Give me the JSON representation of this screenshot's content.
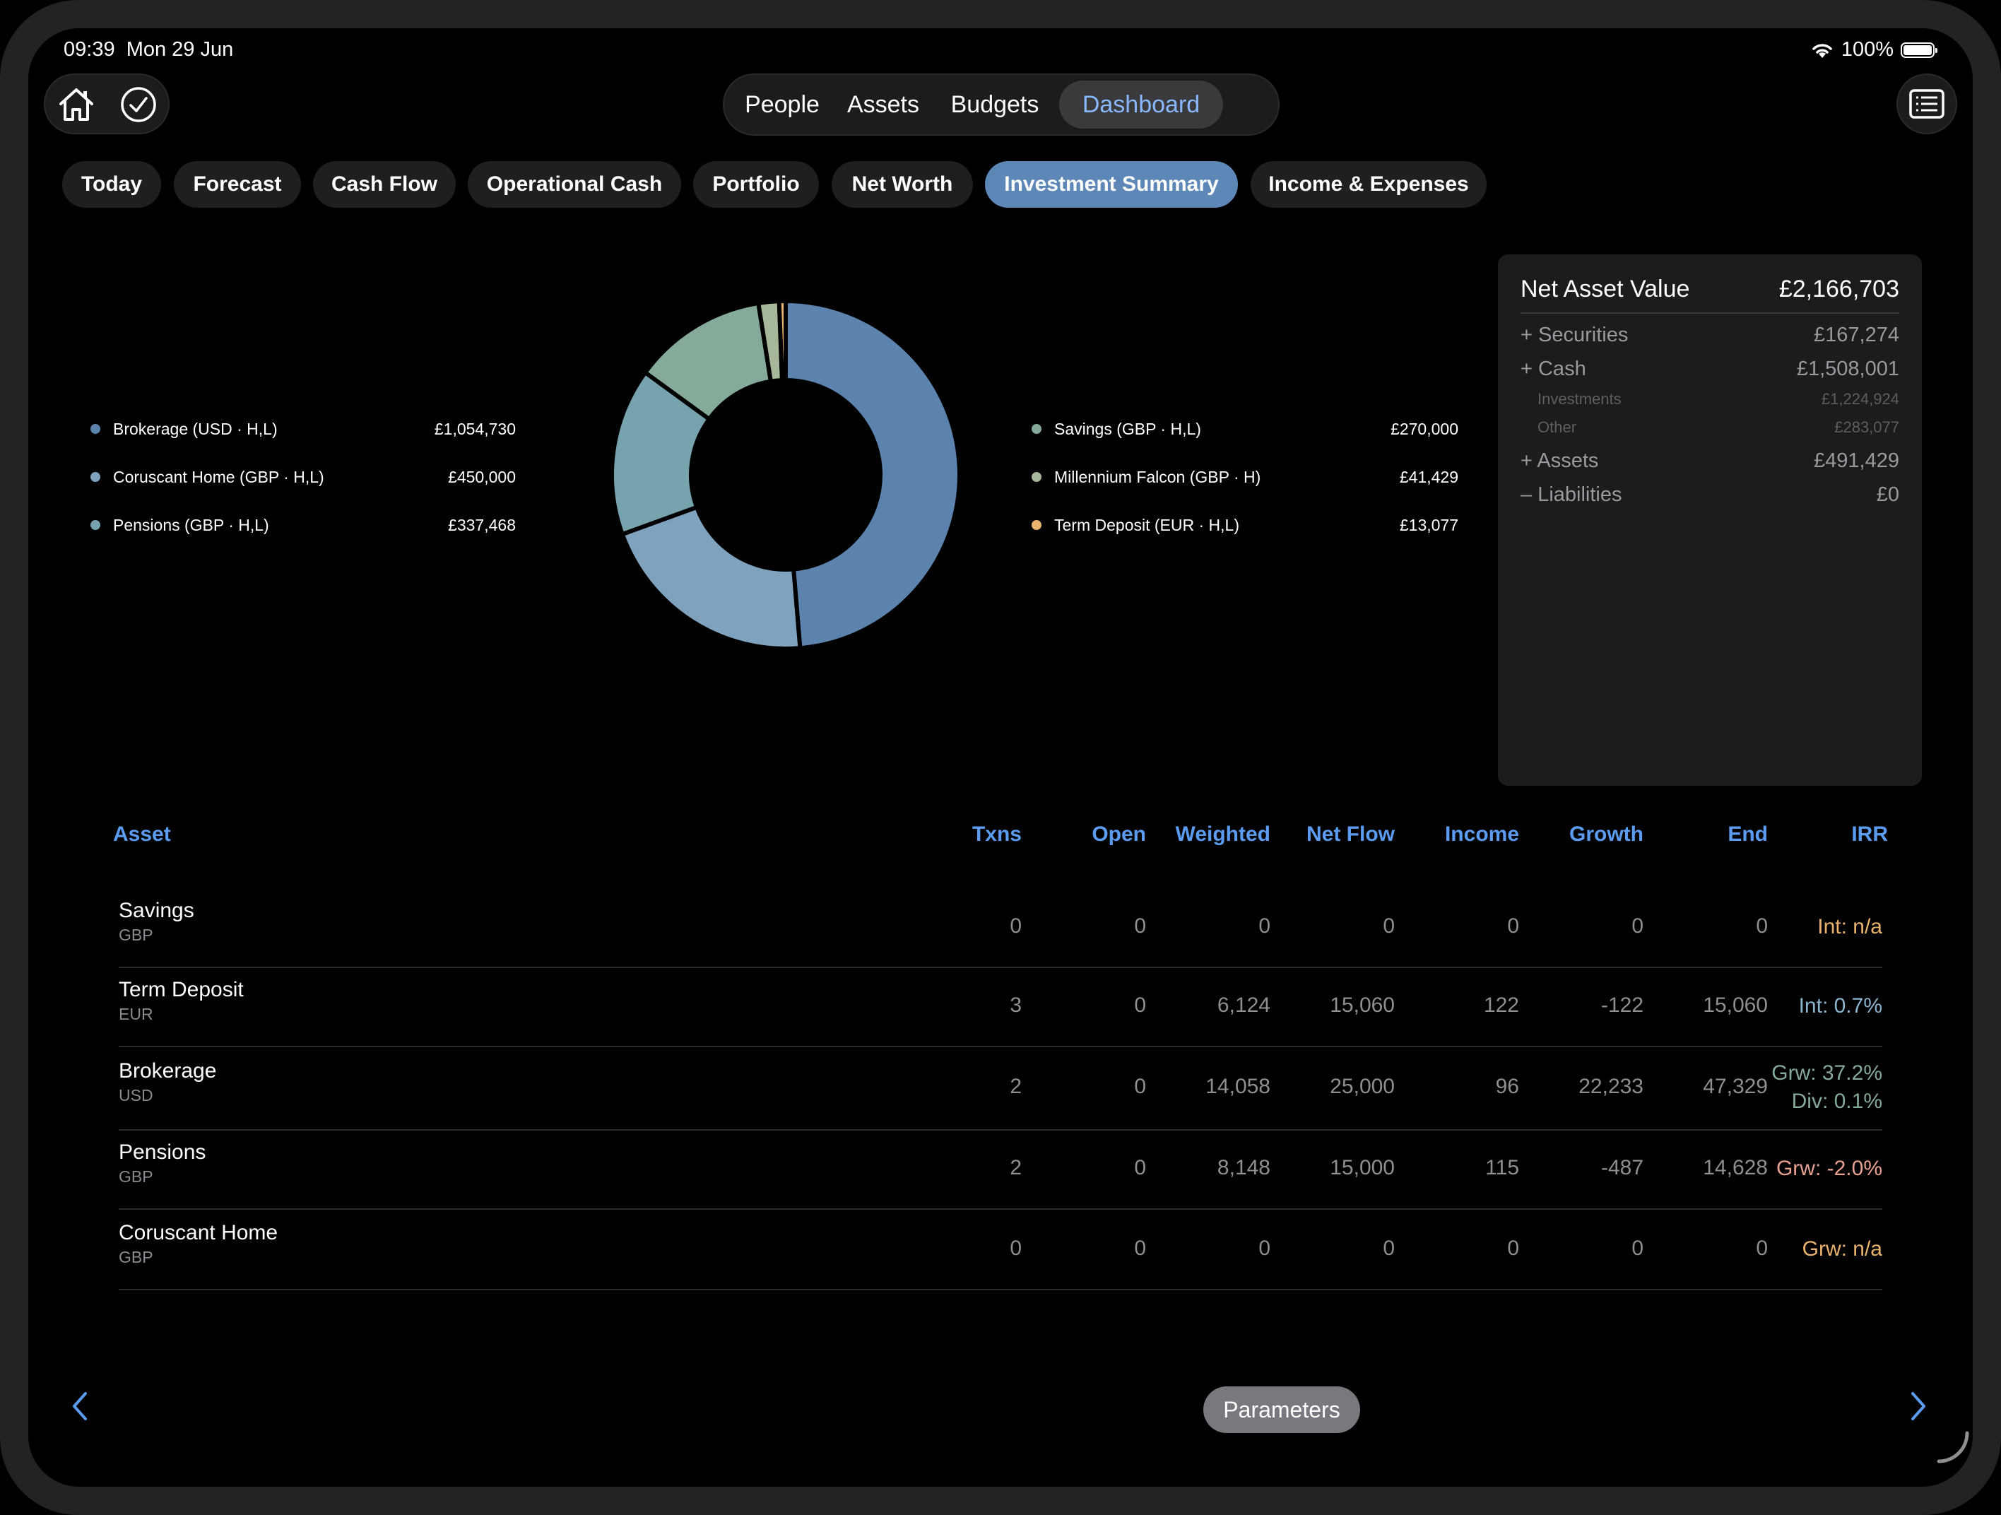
{
  "status": {
    "time": "09:39",
    "date": "Mon 29 Jun",
    "battery": "100%",
    "battery_level": 1.0
  },
  "main_nav": [
    "People",
    "Assets",
    "Budgets",
    "Dashboard"
  ],
  "main_nav_active": "Dashboard",
  "sub_tabs": [
    "Today",
    "Forecast",
    "Cash Flow",
    "Operational Cash",
    "Portfolio",
    "Net Worth",
    "Investment Summary",
    "Income & Expenses"
  ],
  "sub_tab_active": "Investment Summary",
  "chart_data": {
    "type": "pie",
    "donut": true,
    "slices": [
      {
        "label": "Brokerage (USD · H,L)",
        "value": 1054730,
        "display": "£1,054,730",
        "color": "#5b83ad"
      },
      {
        "label": "Coruscant Home (GBP · H,L)",
        "value": 450000,
        "display": "£450,000",
        "color": "#7fa3bf"
      },
      {
        "label": "Pensions (GBP · H,L)",
        "value": 337468,
        "display": "£337,468",
        "color": "#76a3ad"
      },
      {
        "label": "Savings (GBP · H,L)",
        "value": 270000,
        "display": "£270,000",
        "color": "#86aa9a"
      },
      {
        "label": "Millennium Falcon (GBP · H)",
        "value": 41429,
        "display": "£41,429",
        "color": "#a7b89a"
      },
      {
        "label": "Term Deposit (EUR · H,L)",
        "value": 13077,
        "display": "£13,077",
        "color": "#e9b36f"
      }
    ]
  },
  "nav_panel": {
    "title": "Net Asset Value",
    "total": "£2,166,703",
    "lines": [
      {
        "label": "+ Securities",
        "value": "£167,274",
        "small": false
      },
      {
        "label": "+ Cash",
        "value": "£1,508,001",
        "small": false
      },
      {
        "label": "Investments",
        "value": "£1,224,924",
        "small": true
      },
      {
        "label": "Other",
        "value": "£283,077",
        "small": true
      },
      {
        "label": "+ Assets",
        "value": "£491,429",
        "small": false
      },
      {
        "label": "– Liabilities",
        "value": "£0",
        "small": false
      }
    ]
  },
  "table": {
    "headers": [
      "Asset",
      "Txns",
      "Open",
      "Weighted",
      "Net Flow",
      "Income",
      "Growth",
      "End",
      "IRR"
    ],
    "rows": [
      {
        "name": "Savings",
        "currency": "GBP",
        "txns": "0",
        "open": "0",
        "weighted": "0",
        "net_flow": "0",
        "income": "0",
        "growth": "0",
        "end": "0",
        "irr": [
          "Int: n/a"
        ],
        "irr_color": "#e9b36f"
      },
      {
        "name": "Term Deposit",
        "currency": "EUR",
        "txns": "3",
        "open": "0",
        "weighted": "6,124",
        "net_flow": "15,060",
        "income": "122",
        "growth": "-122",
        "end": "15,060",
        "irr": [
          "Int: 0.7%"
        ],
        "irr_color": "#8ab4ce"
      },
      {
        "name": "Brokerage",
        "currency": "USD",
        "txns": "2",
        "open": "0",
        "weighted": "14,058",
        "net_flow": "25,000",
        "income": "96",
        "growth": "22,233",
        "end": "47,329",
        "irr": [
          "Grw: 37.2%",
          "Div: 0.1%"
        ],
        "irr_color": "#86aa9a"
      },
      {
        "name": "Pensions",
        "currency": "GBP",
        "txns": "2",
        "open": "0",
        "weighted": "8,148",
        "net_flow": "15,000",
        "income": "115",
        "growth": "-487",
        "end": "14,628",
        "irr": [
          "Grw: -2.0%"
        ],
        "irr_color": "#e8a293"
      },
      {
        "name": "Coruscant Home",
        "currency": "GBP",
        "txns": "0",
        "open": "0",
        "weighted": "0",
        "net_flow": "0",
        "income": "0",
        "growth": "0",
        "end": "0",
        "irr": [
          "Grw: n/a"
        ],
        "irr_color": "#e9b36f"
      }
    ]
  },
  "parameters_label": "Parameters",
  "icons": {
    "home": "home-icon",
    "check": "checkmark-circle-icon",
    "list": "list-icon",
    "prev": "chevron-left-icon",
    "next": "chevron-right-icon",
    "wifi": "wifi-icon",
    "battery": "battery-icon"
  }
}
